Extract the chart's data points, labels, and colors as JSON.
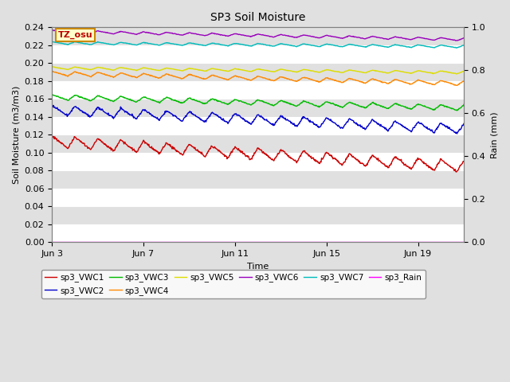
{
  "title": "SP3 Soil Moisture",
  "xlabel": "Time",
  "ylabel_left": "Soil Moisture (m3/m3)",
  "ylabel_right": "Rain (mm)",
  "ylim_left": [
    0.0,
    0.24
  ],
  "ylim_right": [
    0.0,
    1.0
  ],
  "tz_label": "TZ_osu",
  "background_color": "#e0e0e0",
  "series": {
    "sp3_VWC1": {
      "color": "#cc0000"
    },
    "sp3_VWC2": {
      "color": "#0000cc"
    },
    "sp3_VWC3": {
      "color": "#00bb00"
    },
    "sp3_VWC4": {
      "color": "#ff8800"
    },
    "sp3_VWC5": {
      "color": "#dddd00"
    },
    "sp3_VWC6": {
      "color": "#9900bb"
    },
    "sp3_VWC7": {
      "color": "#00bbbb"
    },
    "sp3_Rain": {
      "color": "#ff00ff"
    }
  },
  "xtick_labels": [
    "Jun 3",
    "Jun 7",
    "Jun 11",
    "Jun 15",
    "Jun 19"
  ],
  "xtick_days": [
    0,
    4,
    8,
    12,
    16
  ],
  "yticks_left": [
    0.0,
    0.02,
    0.04,
    0.06,
    0.08,
    0.1,
    0.12,
    0.14,
    0.16,
    0.18,
    0.2,
    0.22,
    0.24
  ],
  "yticks_right": [
    0.0,
    0.2,
    0.4,
    0.6,
    0.8,
    1.0
  ]
}
